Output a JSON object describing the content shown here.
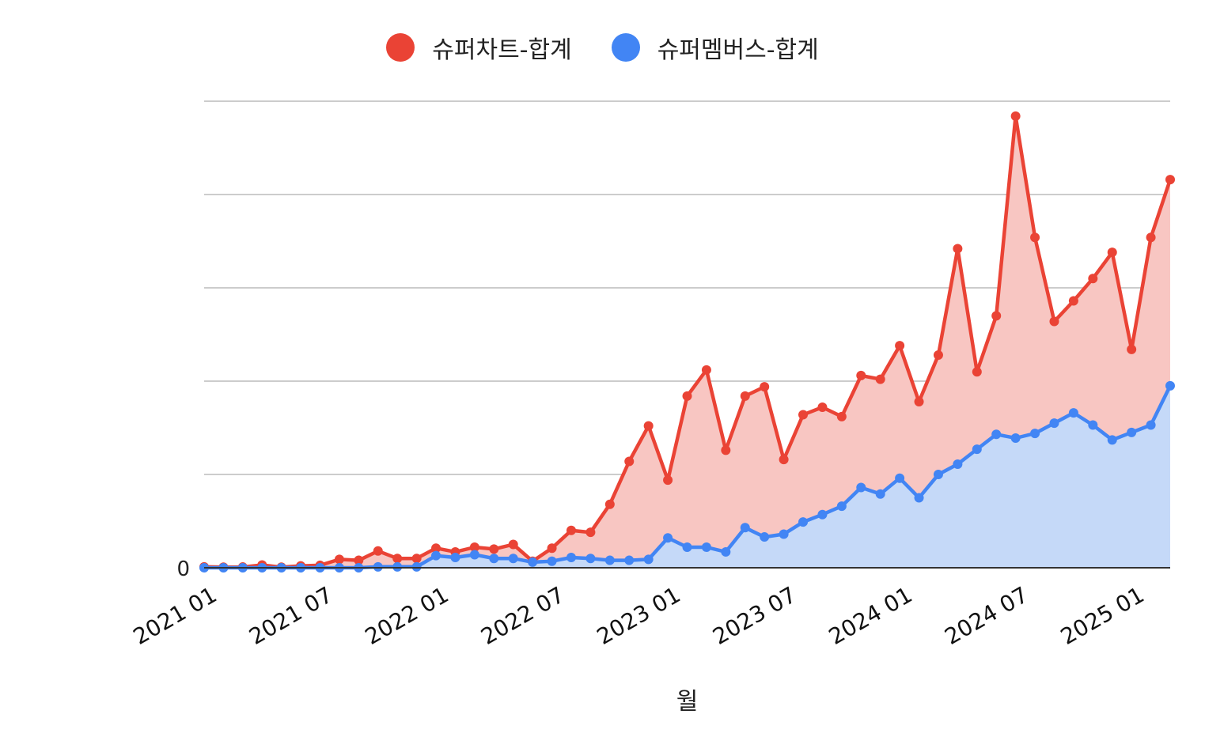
{
  "legend": [
    {
      "name": "슈퍼차트-합계",
      "color": "#ea4335"
    },
    {
      "name": "슈퍼멤버스-합계",
      "color": "#4285f4"
    }
  ],
  "chart_data": {
    "type": "area",
    "xlabel": "월",
    "ylabel": "",
    "y_scale": "obscured",
    "ylim": [
      0,
      250
    ],
    "y_ticks": [
      "0",
      "obscured",
      "obscured",
      "obscured",
      "obscured",
      "obscured"
    ],
    "x_ticks": [
      "2021 01",
      "2021 07",
      "2022 01",
      "2022 07",
      "2023 01",
      "2023 07",
      "2024 01",
      "2024 07",
      "2025 01"
    ],
    "grid": true,
    "legend_position": "top",
    "stacked": false,
    "x": [
      "2021-01",
      "2021-02",
      "2021-03",
      "2021-04",
      "2021-05",
      "2021-06",
      "2021-07",
      "2021-08",
      "2021-09",
      "2021-10",
      "2021-11",
      "2021-12",
      "2022-01",
      "2022-02",
      "2022-03",
      "2022-04",
      "2022-05",
      "2022-06",
      "2022-07",
      "2022-08",
      "2022-09",
      "2022-10",
      "2022-11",
      "2022-12",
      "2023-01",
      "2023-02",
      "2023-03",
      "2023-04",
      "2023-05",
      "2023-06",
      "2023-07",
      "2023-08",
      "2023-09",
      "2023-10",
      "2023-11",
      "2023-12",
      "2024-01",
      "2024-02",
      "2024-03",
      "2024-04",
      "2024-05",
      "2024-06",
      "2024-07",
      "2024-08",
      "2024-09",
      "2024-10",
      "2024-11",
      "2024-12",
      "2025-01",
      "2025-02",
      "2025-03"
    ],
    "series": [
      {
        "name": "슈퍼차트-합계",
        "color": "#ea4335",
        "fill": "#f8c6c2",
        "values": [
          0.5,
          0.3,
          0.4,
          1.5,
          0.3,
          1,
          1.3,
          4.5,
          4,
          9,
          5,
          5,
          10.5,
          8.5,
          11,
          10,
          12.5,
          3.5,
          10.5,
          20,
          19,
          34,
          57,
          76,
          47,
          92,
          106,
          63,
          92,
          97,
          58,
          82,
          86,
          81,
          103,
          101,
          119,
          89,
          114,
          171,
          105,
          135,
          242,
          177,
          132,
          143,
          155,
          169,
          117,
          177,
          208
        ]
      },
      {
        "name": "슈퍼멤버스-합계",
        "color": "#4285f4",
        "fill": "#c5d9f8",
        "values": [
          0,
          0,
          0,
          0,
          0,
          0,
          0,
          0,
          0,
          0.5,
          0.5,
          0.5,
          6.5,
          5.5,
          7,
          5,
          5,
          3,
          3.5,
          5.5,
          5,
          4,
          4,
          4.5,
          16,
          11,
          11,
          8.5,
          21.5,
          16.5,
          18,
          24.5,
          28.5,
          33,
          43,
          39.5,
          48,
          37.5,
          50,
          55.5,
          63.5,
          71.5,
          69.5,
          72,
          77.5,
          83,
          76.5,
          68.5,
          72.5,
          76.5,
          97.5
        ]
      }
    ]
  }
}
